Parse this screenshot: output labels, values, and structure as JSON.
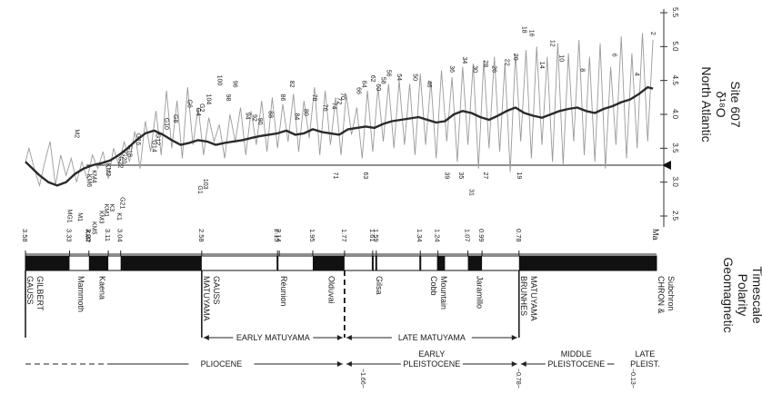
{
  "chart_data": [
    {
      "type": "line",
      "title": "North Atlantic δ¹⁸O Site 607",
      "title_lines": [
        "North Atlantic",
        "δ¹⁸O",
        "Site 607"
      ],
      "xlabel": "Ma",
      "x_ticks": [
        "0.78",
        "0.99",
        "1.07",
        "1.24",
        "1.34",
        "1.59",
        "1.61",
        "1.77",
        "1.95",
        "2.14",
        "2.15",
        "2.58",
        "3.04",
        "3.11",
        "3.22",
        "3.33",
        "3.58"
      ],
      "xlim": [
        3.58,
        0.0
      ],
      "y_ticks": [
        "2.5",
        "3.0",
        "3.5",
        "4.0",
        "4.5",
        "5.0",
        "5.5"
      ],
      "ylim": [
        2.5,
        5.5
      ],
      "arrow_at": 3.3,
      "series": [
        {
          "style": "grey-raw",
          "x": [
            3.58,
            3.56,
            3.53,
            3.5,
            3.47,
            3.44,
            3.41,
            3.38,
            3.35,
            3.32,
            3.29,
            3.26,
            3.23,
            3.2,
            3.17,
            3.14,
            3.11,
            3.08,
            3.05,
            3.02,
            2.99,
            2.96,
            2.93,
            2.9,
            2.87,
            2.84,
            2.81,
            2.78,
            2.75,
            2.72,
            2.69,
            2.66,
            2.63,
            2.6,
            2.57,
            2.54,
            2.51,
            2.48,
            2.45,
            2.42,
            2.39,
            2.36,
            2.33,
            2.3,
            2.27,
            2.24,
            2.21,
            2.18,
            2.15,
            2.12,
            2.09,
            2.06,
            2.03,
            2.0,
            1.97,
            1.94,
            1.91,
            1.88,
            1.85,
            1.82,
            1.79,
            1.76,
            1.73,
            1.7,
            1.67,
            1.64,
            1.61,
            1.58,
            1.55,
            1.52,
            1.49,
            1.46,
            1.43,
            1.4,
            1.37,
            1.34,
            1.31,
            1.28,
            1.25,
            1.22,
            1.19,
            1.16,
            1.13,
            1.1,
            1.07,
            1.04,
            1.01,
            0.98,
            0.95,
            0.92,
            0.89,
            0.86,
            0.83,
            0.8,
            0.77,
            0.74,
            0.71,
            0.68,
            0.65,
            0.62,
            0.59,
            0.56,
            0.53,
            0.5,
            0.47,
            0.44,
            0.41,
            0.38,
            0.35,
            0.32,
            0.29,
            0.26,
            0.23,
            0.2,
            0.17,
            0.14,
            0.11,
            0.08,
            0.05,
            0.02
          ],
          "y": [
            3.3,
            3.5,
            3.2,
            2.95,
            3.3,
            3.6,
            2.95,
            3.4,
            3.1,
            3.35,
            3.0,
            3.3,
            3.05,
            3.4,
            3.2,
            3.45,
            3.05,
            3.5,
            3.25,
            3.6,
            3.3,
            3.75,
            3.2,
            3.9,
            3.45,
            4.05,
            3.4,
            4.35,
            3.5,
            4.2,
            3.35,
            4.4,
            3.55,
            4.1,
            3.4,
            3.95,
            3.6,
            3.85,
            3.35,
            4.0,
            3.6,
            4.1,
            3.4,
            4.05,
            3.55,
            4.2,
            3.45,
            4.25,
            3.5,
            4.15,
            3.6,
            4.3,
            3.45,
            4.2,
            3.65,
            4.4,
            3.4,
            4.35,
            3.55,
            4.25,
            3.4,
            4.3,
            3.7,
            4.1,
            3.35,
            4.35,
            3.45,
            4.4,
            3.6,
            4.45,
            3.5,
            4.5,
            3.55,
            4.45,
            3.4,
            4.6,
            3.55,
            4.5,
            3.35,
            4.65,
            3.6,
            4.55,
            3.3,
            4.7,
            3.55,
            4.75,
            3.2,
            4.8,
            3.5,
            4.85,
            3.45,
            4.75,
            3.15,
            4.9,
            3.6,
            4.95,
            3.35,
            5.0,
            3.55,
            4.85,
            3.3,
            5.05,
            3.25,
            4.9,
            3.6,
            5.1,
            3.4,
            4.85,
            3.3,
            5.05,
            3.2,
            4.7,
            3.55,
            5.15,
            3.35,
            4.9,
            3.5,
            5.2,
            3.6,
            5.1
          ]
        },
        {
          "style": "dark-smoothed",
          "x": [
            3.58,
            3.5,
            3.45,
            3.4,
            3.35,
            3.3,
            3.25,
            3.2,
            3.15,
            3.1,
            3.05,
            3.0,
            2.95,
            2.9,
            2.85,
            2.8,
            2.75,
            2.7,
            2.65,
            2.6,
            2.55,
            2.5,
            2.45,
            2.4,
            2.35,
            2.3,
            2.25,
            2.2,
            2.15,
            2.1,
            2.05,
            2.0,
            1.95,
            1.9,
            1.85,
            1.8,
            1.75,
            1.7,
            1.65,
            1.6,
            1.55,
            1.5,
            1.45,
            1.4,
            1.35,
            1.3,
            1.25,
            1.2,
            1.15,
            1.1,
            1.05,
            1.0,
            0.95,
            0.9,
            0.85,
            0.8,
            0.75,
            0.7,
            0.65,
            0.6,
            0.55,
            0.5,
            0.45,
            0.4,
            0.35,
            0.3,
            0.25,
            0.2,
            0.15,
            0.1,
            0.05,
            0.02
          ],
          "y": [
            3.3,
            3.1,
            3.0,
            2.95,
            3.0,
            3.12,
            3.2,
            3.25,
            3.28,
            3.32,
            3.4,
            3.5,
            3.62,
            3.72,
            3.76,
            3.7,
            3.62,
            3.55,
            3.58,
            3.62,
            3.6,
            3.55,
            3.58,
            3.6,
            3.62,
            3.65,
            3.68,
            3.7,
            3.72,
            3.76,
            3.7,
            3.72,
            3.78,
            3.74,
            3.72,
            3.7,
            3.78,
            3.8,
            3.82,
            3.8,
            3.86,
            3.9,
            3.92,
            3.94,
            3.96,
            3.92,
            3.88,
            3.9,
            4.0,
            4.05,
            4.02,
            3.96,
            3.92,
            3.98,
            4.05,
            4.1,
            4.02,
            3.98,
            3.95,
            4.0,
            4.05,
            4.08,
            4.1,
            4.05,
            4.02,
            4.08,
            4.12,
            4.18,
            4.22,
            4.3,
            4.4,
            4.38
          ]
        }
      ],
      "stage_labels": [
        {
          "t": "2",
          "x": 0.03,
          "y": 5.22
        },
        {
          "t": "4",
          "x": 0.12,
          "y": 4.62
        },
        {
          "t": "6",
          "x": 0.25,
          "y": 4.9
        },
        {
          "t": "8",
          "x": 0.43,
          "y": 4.68
        },
        {
          "t": "10",
          "x": 0.55,
          "y": 4.88
        },
        {
          "t": "12",
          "x": 0.6,
          "y": 5.1
        },
        {
          "t": "14",
          "x": 0.66,
          "y": 4.78
        },
        {
          "t": "16",
          "x": 0.72,
          "y": 5.25
        },
        {
          "t": "18",
          "x": 0.76,
          "y": 5.3
        },
        {
          "t": "20",
          "x": 0.81,
          "y": 4.9
        },
        {
          "t": "22",
          "x": 0.86,
          "y": 4.82
        },
        {
          "t": "26",
          "x": 0.93,
          "y": 4.72
        },
        {
          "t": "28",
          "x": 0.98,
          "y": 4.8
        },
        {
          "t": "30",
          "x": 1.04,
          "y": 4.72
        },
        {
          "t": "34",
          "x": 1.1,
          "y": 4.85
        },
        {
          "t": "36",
          "x": 1.17,
          "y": 4.72
        },
        {
          "t": "46",
          "x": 1.3,
          "y": 4.5
        },
        {
          "t": "50",
          "x": 1.38,
          "y": 4.6
        },
        {
          "t": "54",
          "x": 1.47,
          "y": 4.6
        },
        {
          "t": "56",
          "x": 1.53,
          "y": 4.66
        },
        {
          "t": "58",
          "x": 1.56,
          "y": 4.55
        },
        {
          "t": "60",
          "x": 1.59,
          "y": 4.45
        },
        {
          "t": "62",
          "x": 1.62,
          "y": 4.58
        },
        {
          "t": "64",
          "x": 1.67,
          "y": 4.5
        },
        {
          "t": "66",
          "x": 1.7,
          "y": 4.4
        },
        {
          "t": "70",
          "x": 1.79,
          "y": 4.32
        },
        {
          "t": "72",
          "x": 1.81,
          "y": 4.25
        },
        {
          "t": "74",
          "x": 1.84,
          "y": 4.18
        },
        {
          "t": "76",
          "x": 1.89,
          "y": 4.15
        },
        {
          "t": "78",
          "x": 1.95,
          "y": 4.3
        },
        {
          "t": "80",
          "x": 2.0,
          "y": 4.08
        },
        {
          "t": "82",
          "x": 2.08,
          "y": 4.5
        },
        {
          "t": "84",
          "x": 2.05,
          "y": 4.02
        },
        {
          "t": "86",
          "x": 2.13,
          "y": 4.3
        },
        {
          "t": "88",
          "x": 2.2,
          "y": 4.05
        },
        {
          "t": "90",
          "x": 2.26,
          "y": 3.95
        },
        {
          "t": "92",
          "x": 2.29,
          "y": 4.0
        },
        {
          "t": "94",
          "x": 2.33,
          "y": 4.03
        },
        {
          "t": "96",
          "x": 2.4,
          "y": 4.5
        },
        {
          "t": "98",
          "x": 2.44,
          "y": 4.3
        },
        {
          "t": "100",
          "x": 2.49,
          "y": 4.58
        },
        {
          "t": "104",
          "x": 2.55,
          "y": 4.3
        },
        {
          "t": "G2",
          "x": 2.59,
          "y": 4.16
        },
        {
          "t": "G4",
          "x": 2.61,
          "y": 4.1
        },
        {
          "t": "G6",
          "x": 2.66,
          "y": 4.22
        },
        {
          "t": "G8",
          "x": 2.74,
          "y": 4.0
        },
        {
          "t": "G10",
          "x": 2.79,
          "y": 3.95
        },
        {
          "t": "G12",
          "x": 2.84,
          "y": 3.72
        },
        {
          "t": "G14",
          "x": 2.86,
          "y": 3.62
        },
        {
          "t": "G16",
          "x": 2.95,
          "y": 3.72
        },
        {
          "t": "G18",
          "x": 3.0,
          "y": 3.55
        },
        {
          "t": "G20",
          "x": 3.03,
          "y": 3.45
        },
        {
          "t": "G22",
          "x": 3.05,
          "y": 3.38
        },
        {
          "t": "KM2",
          "x": 3.12,
          "y": 3.28
        },
        {
          "t": "KM4",
          "x": 3.2,
          "y": 3.18
        },
        {
          "t": "KM6",
          "x": 3.23,
          "y": 3.12
        },
        {
          "t": "M2",
          "x": 3.3,
          "y": 3.78
        },
        {
          "t": "71",
          "x": 1.83,
          "y": 3.15
        },
        {
          "t": "63",
          "x": 1.66,
          "y": 3.15
        },
        {
          "t": "39",
          "x": 1.2,
          "y": 3.15
        },
        {
          "t": "35",
          "x": 1.12,
          "y": 3.15
        },
        {
          "t": "31",
          "x": 1.06,
          "y": 2.9
        },
        {
          "t": "27",
          "x": 0.98,
          "y": 3.15
        },
        {
          "t": "19",
          "x": 0.79,
          "y": 3.15
        },
        {
          "t": "103",
          "x": 2.57,
          "y": 3.05
        },
        {
          "t": "G1",
          "x": 2.6,
          "y": 2.95
        },
        {
          "t": "G21",
          "x": 3.04,
          "y": 2.78
        },
        {
          "t": "K1",
          "x": 3.06,
          "y": 2.55
        },
        {
          "t": "K3",
          "x": 3.1,
          "y": 2.68
        },
        {
          "t": "KM1",
          "x": 3.13,
          "y": 2.68
        },
        {
          "t": "KM3",
          "x": 3.16,
          "y": 2.58
        },
        {
          "t": "KM5",
          "x": 3.2,
          "y": 2.42
        },
        {
          "t": "MG1",
          "x": 3.34,
          "y": 2.6
        },
        {
          "t": "M1",
          "x": 3.28,
          "y": 2.55
        },
        {
          "t": "KM7",
          "x": 3.24,
          "y": 2.3
        }
      ]
    },
    {
      "type": "timeline",
      "title": "Geomagnetic Polarity Timescale",
      "title_lines": [
        "Geomagnetic",
        "Polarity",
        "Timescale"
      ],
      "xlim": [
        3.58,
        0.0
      ],
      "normal_polarity_intervals": [
        [
          3.58,
          3.33
        ],
        [
          3.22,
          3.11
        ],
        [
          3.04,
          2.58
        ],
        [
          1.95,
          1.77
        ],
        [
          1.24,
          1.2
        ],
        [
          1.07,
          0.99
        ],
        [
          0.78,
          0.0
        ]
      ],
      "event_lines": [
        2.15,
        1.59,
        1.61,
        1.34,
        1.24
      ],
      "labels": [
        {
          "text": "GAUSS",
          "x": 3.58
        },
        {
          "text": "GILBERT",
          "x": 3.58
        },
        {
          "text": "Mammoth",
          "x": 3.29
        },
        {
          "text": "Kaena",
          "x": 3.17
        },
        {
          "text": "MATUYAMA",
          "x": 2.58
        },
        {
          "text": "GAUSS",
          "x": 2.58
        },
        {
          "text": "Réunion",
          "x": 2.14
        },
        {
          "text": "Olduvai",
          "x": 1.87
        },
        {
          "text": "Gilsa",
          "x": 1.6
        },
        {
          "text": "Cobb",
          "x": 1.29
        },
        {
          "text": "Mountain",
          "x": 1.29
        },
        {
          "text": "Jaramillo",
          "x": 1.03
        },
        {
          "text": "BRUNHES",
          "x": 0.78
        },
        {
          "text": "MATUYAMA",
          "x": 0.78
        },
        {
          "text": "CHRON &",
          "x": 0.0
        },
        {
          "text": "Subchron",
          "x": 0.0
        }
      ],
      "periods": [
        {
          "label": "EARLY MATUYAMA",
          "from": 2.58,
          "to": 1.77
        },
        {
          "label": "LATE MATUYAMA",
          "from": 1.77,
          "to": 0.78
        }
      ],
      "epochs": [
        {
          "label": "PLIOCENE",
          "from": 3.58,
          "to": 1.77,
          "dashed_start": true
        },
        {
          "label_lines": [
            "EARLY",
            "PLEISTOCENE"
          ],
          "from": 1.77,
          "to": 0.78
        },
        {
          "label_lines": [
            "MIDDLE",
            "PLEISTOCENE"
          ],
          "from": 0.78,
          "to": 0.13
        },
        {
          "label_lines": [
            "LATE",
            "PLEIST."
          ],
          "from": 0.13,
          "to": 0.0
        }
      ],
      "boundary_marks": [
        {
          "label": "~1.66~",
          "x": 1.66
        },
        {
          "label": "~0.78~",
          "x": 0.78
        },
        {
          "label": "~0.13~",
          "x": 0.13
        }
      ]
    }
  ]
}
